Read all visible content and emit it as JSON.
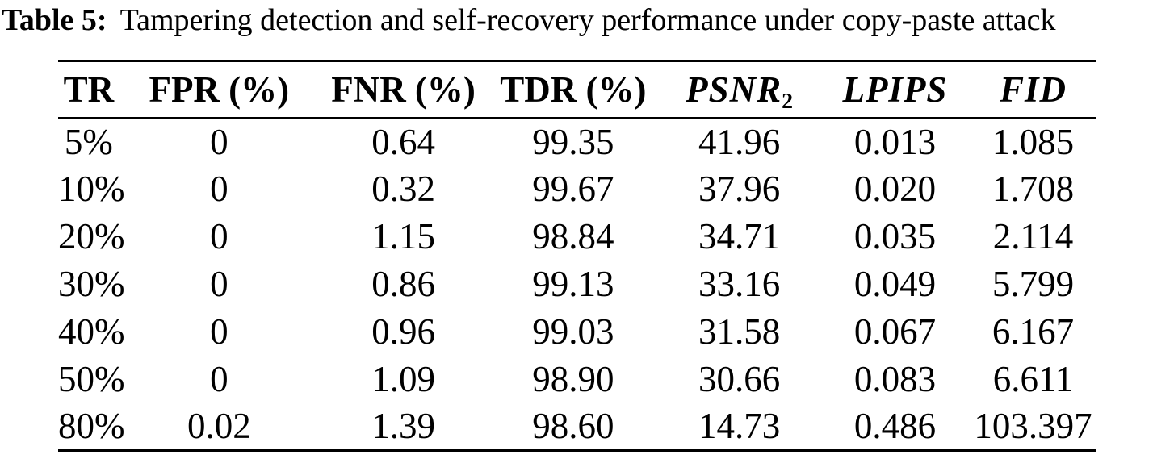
{
  "caption": {
    "label": "Table 5:",
    "text": "Tampering detection and self-recovery performance under copy-paste attack"
  },
  "colors": {
    "text": "#000000",
    "background": "#ffffff",
    "rule": "#000000"
  },
  "chart_data": {
    "type": "table",
    "title": "Table 5: Tampering detection and self-recovery performance under copy-paste attack",
    "columns": [
      "TR",
      "FPR (%)",
      "FNR (%)",
      "TDR (%)",
      "PSNR2",
      "LPIPS",
      "FID"
    ],
    "rows": [
      [
        "5%",
        "0",
        "0.64",
        "99.35",
        "41.96",
        "0.013",
        "1.085"
      ],
      [
        "10%",
        "0",
        "0.32",
        "99.67",
        "37.96",
        "0.020",
        "1.708"
      ],
      [
        "20%",
        "0",
        "1.15",
        "98.84",
        "34.71",
        "0.035",
        "2.114"
      ],
      [
        "30%",
        "0",
        "0.86",
        "99.13",
        "33.16",
        "0.049",
        "5.799"
      ],
      [
        "40%",
        "0",
        "0.96",
        "99.03",
        "31.58",
        "0.067",
        "6.167"
      ],
      [
        "50%",
        "0",
        "1.09",
        "98.90",
        "30.66",
        "0.083",
        "6.611"
      ],
      [
        "80%",
        "0.02",
        "1.39",
        "98.60",
        "14.73",
        "0.486",
        "103.397"
      ]
    ]
  },
  "table": {
    "columns": [
      {
        "label": "TR",
        "sub": ""
      },
      {
        "label": "FPR (%)",
        "sub": ""
      },
      {
        "label": "FNR (%)",
        "sub": ""
      },
      {
        "label": "TDR (%)",
        "sub": ""
      },
      {
        "label": "PSNR",
        "sub": "2"
      },
      {
        "label": "LPIPS",
        "sub": ""
      },
      {
        "label": "FID",
        "sub": ""
      }
    ],
    "rows": [
      [
        "5%",
        "0",
        "0.64",
        "99.35",
        "41.96",
        "0.013",
        "1.085"
      ],
      [
        "10%",
        "0",
        "0.32",
        "99.67",
        "37.96",
        "0.020",
        "1.708"
      ],
      [
        "20%",
        "0",
        "1.15",
        "98.84",
        "34.71",
        "0.035",
        "2.114"
      ],
      [
        "30%",
        "0",
        "0.86",
        "99.13",
        "33.16",
        "0.049",
        "5.799"
      ],
      [
        "40%",
        "0",
        "0.96",
        "99.03",
        "31.58",
        "0.067",
        "6.167"
      ],
      [
        "50%",
        "0",
        "1.09",
        "98.90",
        "30.66",
        "0.083",
        "6.611"
      ],
      [
        "80%",
        "0.02",
        "1.39",
        "98.60",
        "14.73",
        "0.486",
        "103.397"
      ]
    ]
  }
}
